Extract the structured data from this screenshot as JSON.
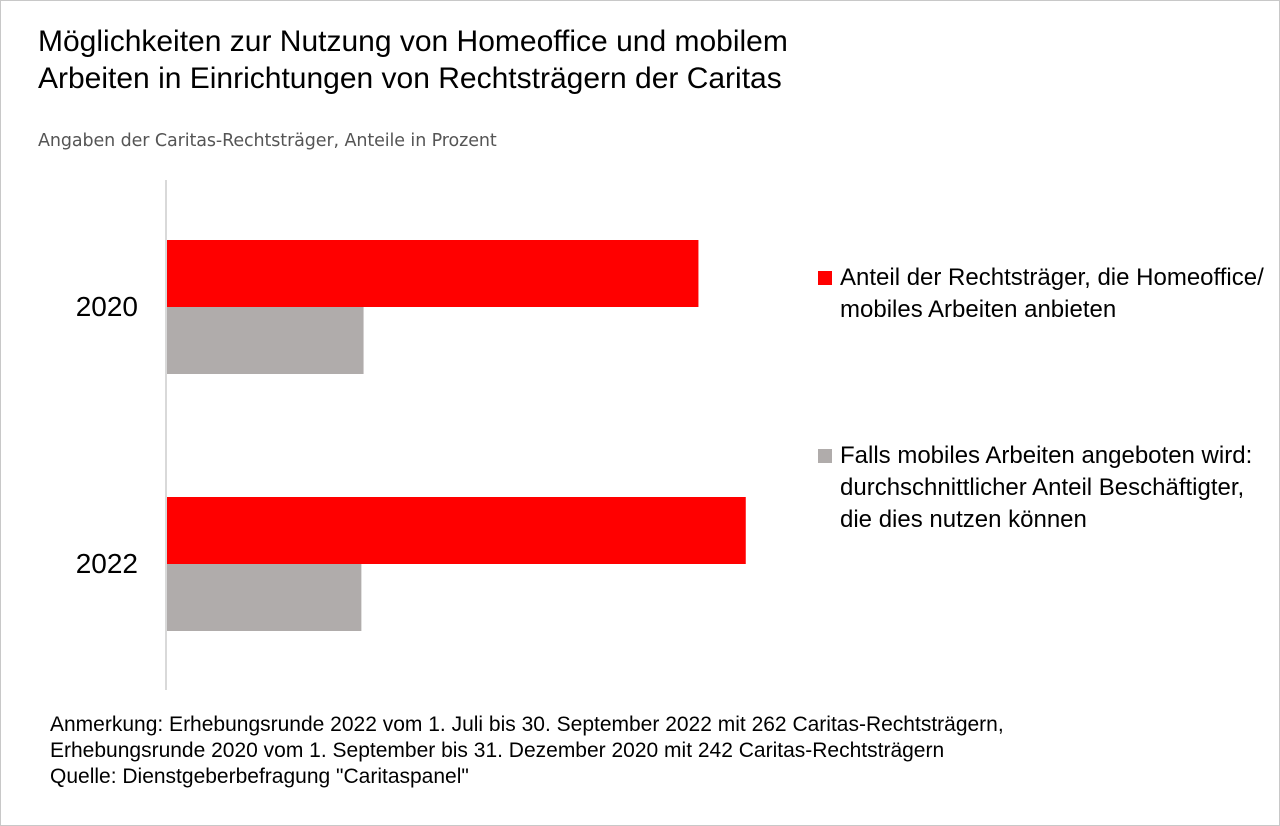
{
  "title": [
    "Möglichkeiten zur Nutzung von Homeoffice und mobilem",
    "Arbeiten in Einrichtungen von Rechtsträgern der Caritas"
  ],
  "subtitle": "Angaben der Caritas-Rechtsträger, Anteile in Prozent",
  "notes": [
    "Anmerkung: Erhebungsrunde 2022 vom 1. Juli bis 30. September 2022 mit 262 Caritas-Rechtsträgern,",
    "Erhebungsrunde 2020 vom 1. September bis 31. Dezember 2020 mit 242 Caritas-Rechtsträgern",
    "Quelle: Dienstgeberbefragung \"Caritaspanel\""
  ],
  "chart_data": {
    "type": "bar",
    "orientation": "horizontal",
    "categories": [
      "2020",
      "2022"
    ],
    "series": [
      {
        "name": "Anteil der Rechtsträger, die Homeoffice/ mobiles Arbeiten anbieten",
        "values": [
          73,
          79.5
        ],
        "color": "#ff0000"
      },
      {
        "name": "Falls mobiles Arbeiten angeboten wird: durchschnittlicher Anteil Beschäftigter, die dies nutzen können",
        "values": [
          27,
          26.7
        ],
        "color": "#b0acab"
      }
    ],
    "xlim": [
      0,
      100
    ],
    "grid": false,
    "legend": "right",
    "axis_color": "#d9d9d9"
  }
}
